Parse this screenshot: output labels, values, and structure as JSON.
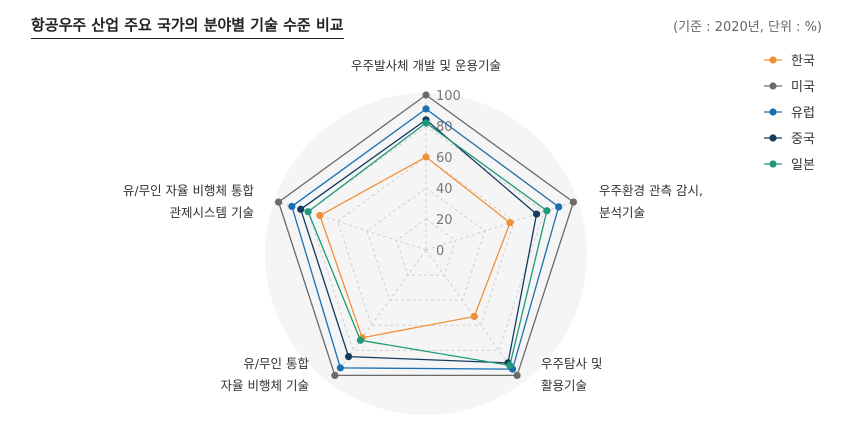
{
  "title": "항공우주 산업 주요 국가의 분야별 기술 수준 비교",
  "note": "(기준 : 2020년, 단위 : %)",
  "chart_data": {
    "type": "radar",
    "axes": [
      [
        "우주발사체 개발 및 운용기술"
      ],
      [
        "우주환경 관측 감시,",
        "분석기술"
      ],
      [
        "우주탐사 및",
        "활용기술"
      ],
      [
        "유/무인 통합",
        "자율 비행체 기술"
      ],
      [
        "유/무인 자율 비행체 통합",
        "관제시스템 기술"
      ]
    ],
    "rlim": [
      0,
      100
    ],
    "ticks": [
      0,
      20,
      40,
      60,
      80,
      100
    ],
    "tick_labels": [
      "0",
      "20",
      "40",
      "60",
      "80",
      "100"
    ],
    "grid": true,
    "legend_position": "right-top",
    "series": [
      {
        "name": "한국",
        "color": "#f0913a",
        "values": [
          60,
          57,
          53,
          70,
          72
        ]
      },
      {
        "name": "미국",
        "color": "#6b6b6b",
        "values": [
          100,
          100,
          100,
          100,
          100
        ]
      },
      {
        "name": "유럽",
        "color": "#1a6fb0",
        "values": [
          91,
          90,
          95,
          94,
          91
        ]
      },
      {
        "name": "중국",
        "color": "#163a5f",
        "values": [
          84,
          75,
          90,
          85,
          85
        ]
      },
      {
        "name": "일본",
        "color": "#1e9a78",
        "values": [
          82,
          82,
          92,
          72,
          80
        ]
      }
    ]
  }
}
